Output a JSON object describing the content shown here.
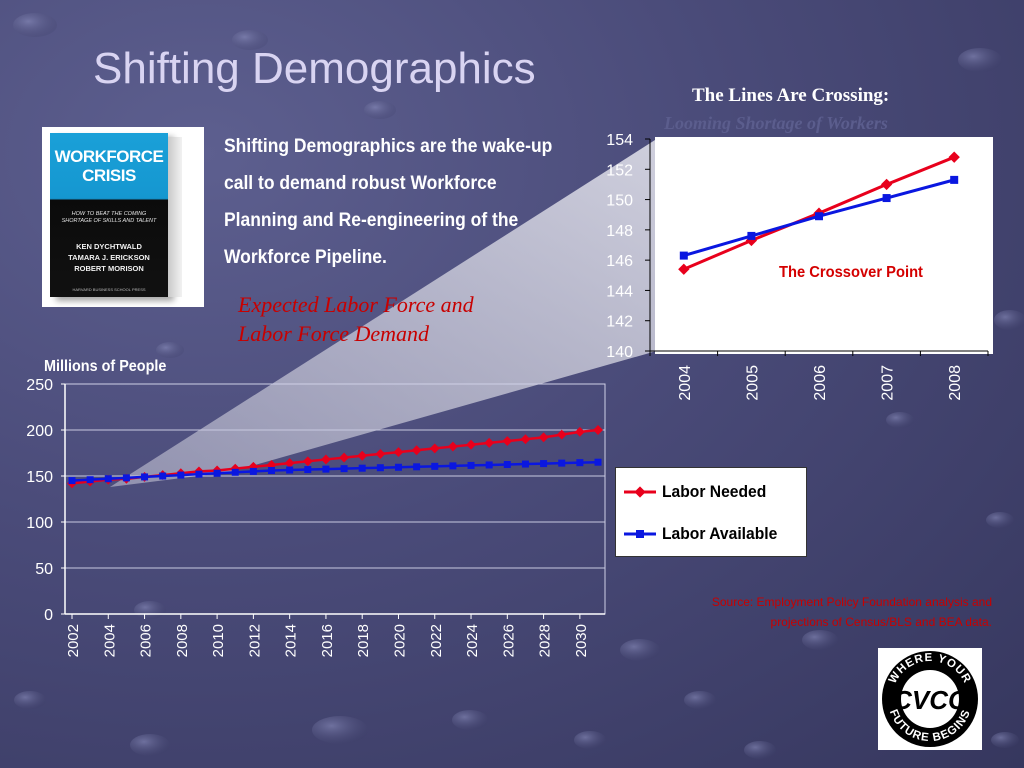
{
  "slide": {
    "title": "Shifting Demographics",
    "intro_text": "Shifting Demographics are the wake-up call to demand robust Workforce Planning and Re-engineering of the Workforce Pipeline.",
    "callout_line1": "Expected Labor Force and",
    "callout_line2": "Labor Force Demand",
    "chart_heading": "The Lines Are Crossing:",
    "chart_subheading": "Looming Shortage of Workers",
    "y_axis_title": "Millions of People",
    "crossover_label": "The Crossover Point",
    "source_line1": "Source:  Employment Policy Foundation analysis and",
    "source_line2": "projections of Census/BLS and BEA data."
  },
  "book": {
    "title_line1": "WORKFORCE",
    "title_line2": "CRISIS",
    "subtitle_line1": "HOW TO BEAT THE COMING",
    "subtitle_line2": "SHORTAGE OF SKILLS AND TALENT",
    "author1": "KEN DYCHTWALD",
    "author2": "TAMARA J. ERICKSON",
    "author3": "ROBERT MORISON",
    "publisher": "HARVARD BUSINESS SCHOOL PRESS"
  },
  "logo": {
    "ring_text": "WHERE YOUR FUTURE BEGINS",
    "mark_text": "CVCC"
  },
  "colors": {
    "labor_needed": "#e8001c",
    "labor_available": "#0a17e0",
    "callout": "#c80000",
    "title": "#d9d4f2"
  },
  "chart_data": [
    {
      "type": "line",
      "title": "",
      "ylabel": "Millions of People",
      "x": [
        2002,
        2003,
        2004,
        2005,
        2006,
        2007,
        2008,
        2009,
        2010,
        2011,
        2012,
        2013,
        2014,
        2015,
        2016,
        2017,
        2018,
        2019,
        2020,
        2021,
        2022,
        2023,
        2024,
        2025,
        2026,
        2027,
        2028,
        2029,
        2030,
        2031
      ],
      "x_ticks": [
        "2002",
        "2004",
        "2006",
        "2008",
        "2010",
        "2012",
        "2014",
        "2016",
        "2018",
        "2020",
        "2022",
        "2024",
        "2026",
        "2028",
        "2030"
      ],
      "y_ticks": [
        "0",
        "50",
        "100",
        "150",
        "200",
        "250"
      ],
      "ylim": [
        0,
        250
      ],
      "grid": true,
      "series": [
        {
          "name": "Labor Needed",
          "values": [
            142,
            144,
            146,
            147,
            149,
            151,
            153,
            155,
            156,
            158,
            160,
            162,
            164,
            166,
            168,
            170,
            172,
            174,
            176,
            178,
            180,
            182,
            184,
            186,
            188,
            190,
            192,
            195,
            198,
            200
          ]
        },
        {
          "name": "Labor Available",
          "values": [
            145,
            146,
            147,
            148,
            149,
            150,
            151,
            152,
            153,
            154,
            155,
            156,
            156.5,
            157,
            157.5,
            158,
            158.5,
            159,
            159.5,
            160,
            160.5,
            161,
            161.5,
            162,
            162.5,
            163,
            163.5,
            164,
            164.5,
            165
          ]
        }
      ],
      "legend_entries": [
        "Labor Needed",
        "Labor Available"
      ],
      "legend": "right"
    },
    {
      "type": "line",
      "title": "The Lines Are Crossing:",
      "subtitle": "Looming Shortage of Workers",
      "categories": [
        "2004",
        "2005",
        "2006",
        "2007",
        "2008"
      ],
      "y_ticks": [
        "140",
        "142",
        "144",
        "146",
        "148",
        "150",
        "152",
        "154"
      ],
      "ylim": [
        140,
        154
      ],
      "grid": false,
      "series": [
        {
          "name": "Labor Needed",
          "values": [
            145.4,
            147.3,
            149.1,
            151.0,
            152.8
          ]
        },
        {
          "name": "Labor Available",
          "values": [
            146.3,
            147.6,
            148.9,
            150.1,
            151.3
          ]
        }
      ],
      "annotation": "The Crossover Point"
    }
  ]
}
